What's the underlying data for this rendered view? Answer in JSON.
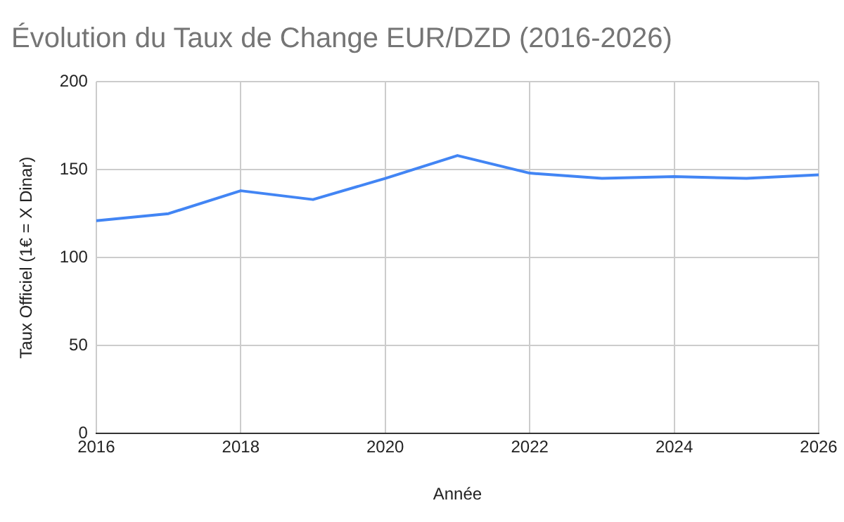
{
  "chart_data": {
    "type": "line",
    "title": "Évolution du Taux de Change EUR/DZD (2016-2026)",
    "xlabel": "Année",
    "ylabel": "Taux Officiel (1€ = X Dinar)",
    "x": [
      2016,
      2017,
      2018,
      2019,
      2020,
      2021,
      2022,
      2023,
      2024,
      2025,
      2026
    ],
    "series": [
      {
        "color": "#4285f4",
        "values": [
          121,
          125,
          138,
          133,
          145,
          158,
          148,
          145,
          146,
          145,
          147
        ]
      }
    ],
    "xlim": [
      2016,
      2026
    ],
    "xticks": [
      2016,
      2018,
      2020,
      2022,
      2024,
      2026
    ],
    "ylim": [
      0,
      200
    ],
    "yticks": [
      0,
      50,
      100,
      150,
      200
    ],
    "grid": true,
    "legend": false,
    "marker": "none",
    "line_style": "solid"
  }
}
